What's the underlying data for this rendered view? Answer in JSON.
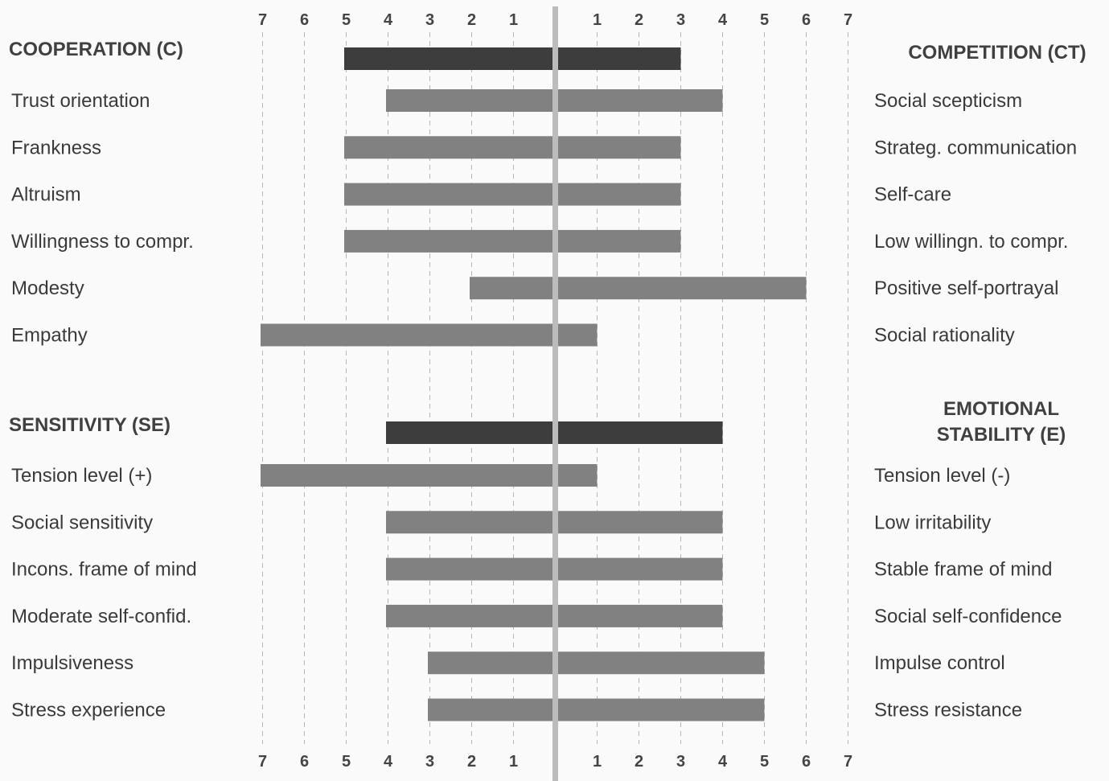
{
  "chart_data": {
    "type": "bar",
    "orientation": "horizontal",
    "layout": "bipolar-profile",
    "axis_ticks": [
      7,
      6,
      5,
      4,
      3,
      2,
      1
    ],
    "xlim": [
      0,
      7
    ],
    "grid": true,
    "colors": {
      "summary": "#3d3d3d",
      "facet": "#818181",
      "center": "#bcbcbc",
      "grid": "#b5b5b5"
    },
    "sections": [
      {
        "left_title": "COOPERATION (C)",
        "right_title": [
          "COMPETITION (CT)"
        ],
        "summary": {
          "left": 5,
          "right": 3
        },
        "rows": [
          {
            "left_label": "Trust orientation",
            "right_label": "Social scepticism",
            "left": 4,
            "right": 4
          },
          {
            "left_label": "Frankness",
            "right_label": "Strateg. communication",
            "left": 5,
            "right": 3
          },
          {
            "left_label": "Altruism",
            "right_label": "Self-care",
            "left": 5,
            "right": 3
          },
          {
            "left_label": "Willingness to compr.",
            "right_label": "Low willingn. to compr.",
            "left": 5,
            "right": 3
          },
          {
            "left_label": "Modesty",
            "right_label": "Positive self-portrayal",
            "left": 2,
            "right": 6
          },
          {
            "left_label": "Empathy",
            "right_label": "Social rationality",
            "left": 7,
            "right": 1
          }
        ]
      },
      {
        "left_title": "SENSITIVITY (SE)",
        "right_title": [
          "EMOTIONAL",
          "STABILITY (E)"
        ],
        "summary": {
          "left": 4,
          "right": 4
        },
        "rows": [
          {
            "left_label": "Tension level (+)",
            "right_label": "Tension level (-)",
            "left": 7,
            "right": 1
          },
          {
            "left_label": "Social sensitivity",
            "right_label": "Low irritability",
            "left": 4,
            "right": 4
          },
          {
            "left_label": "Incons. frame of mind",
            "right_label": "Stable frame of mind",
            "left": 4,
            "right": 4
          },
          {
            "left_label": "Moderate self-confid.",
            "right_label": "Social self-confidence",
            "left": 4,
            "right": 4
          },
          {
            "left_label": "Impulsiveness",
            "right_label": "Impulse control",
            "left": 3,
            "right": 5
          },
          {
            "left_label": "Stress experience",
            "right_label": "Stress resistance",
            "left": 3,
            "right": 5
          }
        ]
      }
    ]
  }
}
